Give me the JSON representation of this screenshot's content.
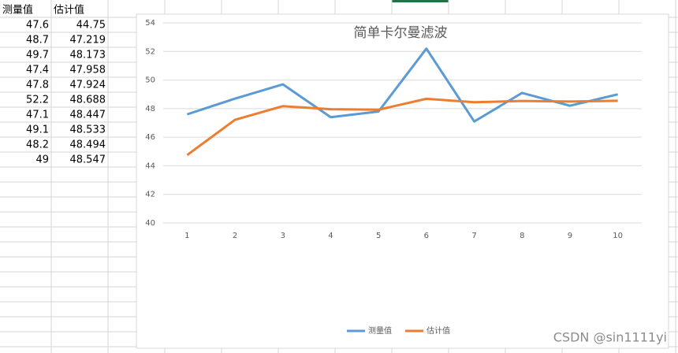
{
  "chart_data": {
    "type": "line",
    "title": "简单卡尔曼滤波",
    "categories": [
      "1",
      "2",
      "3",
      "4",
      "5",
      "6",
      "7",
      "8",
      "9",
      "10"
    ],
    "series": [
      {
        "name": "测量值",
        "color": "#5b9bd5",
        "values": [
          47.6,
          48.7,
          49.7,
          47.4,
          47.8,
          52.2,
          47.1,
          49.1,
          48.2,
          49
        ]
      },
      {
        "name": "估计值",
        "color": "#ed7d31",
        "values": [
          44.75,
          47.219,
          48.173,
          47.958,
          47.924,
          48.688,
          48.447,
          48.533,
          48.494,
          48.547
        ]
      }
    ],
    "ylim": [
      40,
      54
    ],
    "yticks": [
      40,
      42,
      44,
      46,
      48,
      50,
      52,
      54
    ],
    "grid": true,
    "legend": "bottom"
  },
  "watermark": "CSDN @sin1111yi"
}
